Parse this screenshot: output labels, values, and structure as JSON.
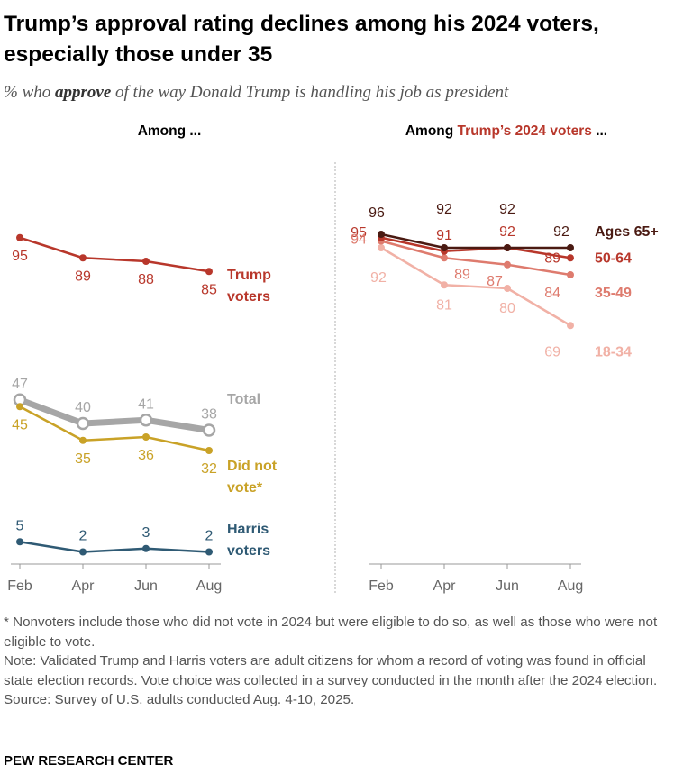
{
  "header": {
    "title": "Trump’s approval rating declines among his 2024 voters, especially those under 35",
    "subtitle_prefix": "% who ",
    "subtitle_emphasis": "approve",
    "subtitle_suffix": " of the way Donald Trump is handling his job as president"
  },
  "chart_data": [
    {
      "type": "line",
      "title": "Among ...",
      "x": [
        "Feb",
        "Apr",
        "Jun",
        "Aug"
      ],
      "ylim": [
        0,
        100
      ],
      "grid": false,
      "series": [
        {
          "name": "Trump voters",
          "name_lines": [
            "Trump",
            "voters"
          ],
          "values": [
            95,
            89,
            88,
            85
          ],
          "color": "#b8372b",
          "style": "normal"
        },
        {
          "name": "Total",
          "name_lines": [
            "Total"
          ],
          "values": [
            47,
            40,
            41,
            38
          ],
          "color": "#a6a6a6",
          "style": "thick-hollow"
        },
        {
          "name": "Did not vote*",
          "name_lines": [
            "Did not",
            "vote*"
          ],
          "values": [
            45,
            35,
            36,
            32
          ],
          "color": "#c9a227",
          "style": "normal"
        },
        {
          "name": "Harris voters",
          "name_lines": [
            "Harris",
            "voters"
          ],
          "values": [
            5,
            2,
            3,
            2
          ],
          "color": "#2f5a74",
          "style": "normal"
        }
      ]
    },
    {
      "type": "line",
      "title_prefix": "Among ",
      "title_highlight": "Trump’s 2024 voters",
      "title_suffix": " ...",
      "title_highlight_color": "#b8372b",
      "x": [
        "Feb",
        "Apr",
        "Jun",
        "Aug"
      ],
      "ylim": [
        0,
        100
      ],
      "grid": false,
      "series": [
        {
          "name": "Ages 65+",
          "values": [
            96,
            92,
            92,
            92
          ],
          "color": "#4a1a12"
        },
        {
          "name": "50-64",
          "values": [
            95,
            91,
            92,
            89
          ],
          "color": "#b8372b"
        },
        {
          "name": "35-49",
          "values": [
            94,
            89,
            87,
            84
          ],
          "color": "#de7b6e"
        },
        {
          "name": "18-34",
          "values": [
            92,
            81,
            80,
            69
          ],
          "color": "#f1b1a6"
        }
      ]
    }
  ],
  "notes": {
    "asterisk_note": "* Nonvoters include those who did not vote in 2024 but were eligible to do so, as well as those who were not eligible to vote.",
    "note": "Note: Validated Trump and Harris voters are adult citizens for whom a record of voting was found in official state election records. Vote choice was collected in a survey conducted in the month after the 2024 election.",
    "source": "Source: Survey of U.S. adults conducted Aug. 4-10, 2025."
  },
  "footer": {
    "brand": "PEW RESEARCH CENTER"
  }
}
